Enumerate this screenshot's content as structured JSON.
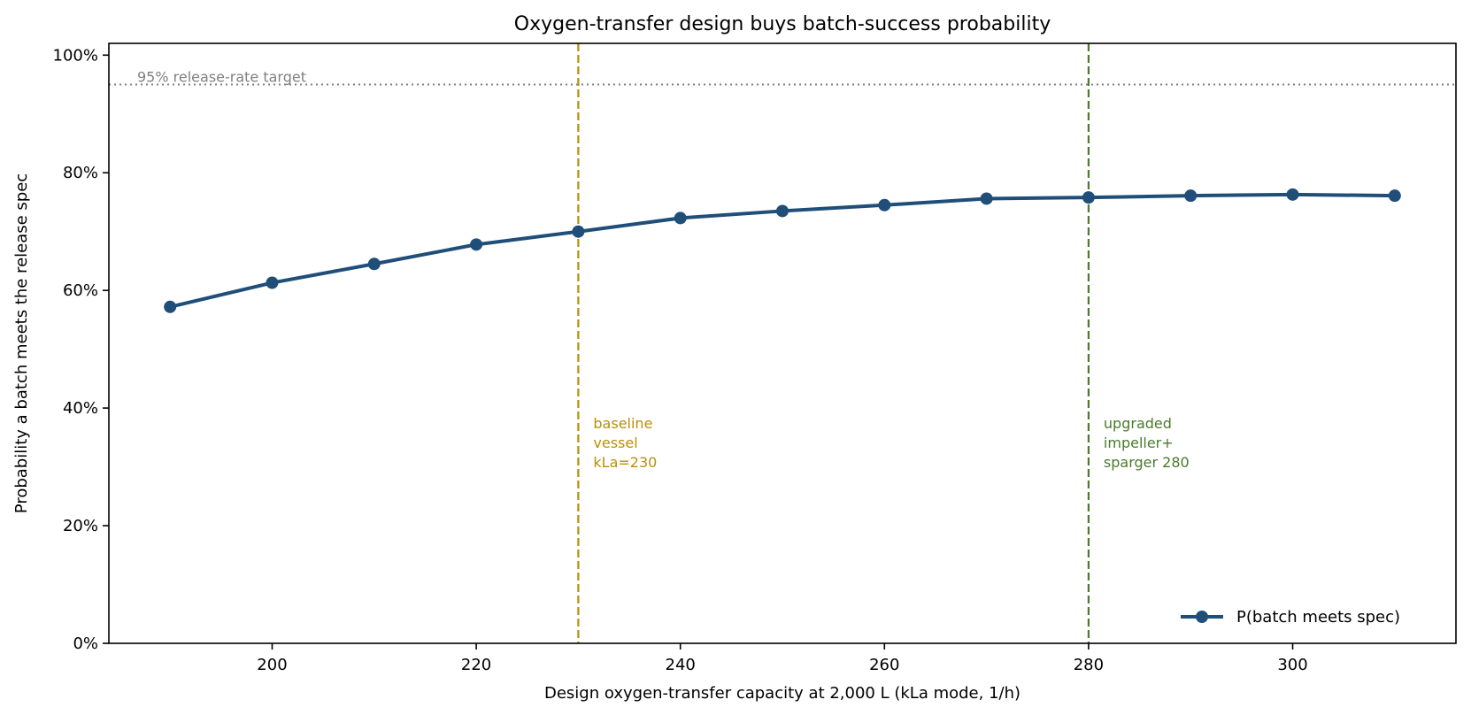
{
  "chart_data": {
    "type": "line",
    "title": "Oxygen-transfer design buys batch-success probability",
    "xlabel": "Design oxygen-transfer capacity at 2,000 L  (kLa mode, 1/h)",
    "ylabel": "Probability a batch meets the release spec",
    "xlim": [
      184,
      316
    ],
    "ylim": [
      0,
      102
    ],
    "x_ticks": [
      200,
      220,
      240,
      260,
      280,
      300
    ],
    "x_tick_labels": [
      "200",
      "220",
      "240",
      "260",
      "280",
      "300"
    ],
    "y_ticks": [
      0,
      20,
      40,
      60,
      80,
      100
    ],
    "y_tick_labels": [
      "0%",
      "20%",
      "40%",
      "60%",
      "80%",
      "100%"
    ],
    "grid": false,
    "legend_position": "lower-right",
    "series": [
      {
        "name": "P(batch meets spec)",
        "color": "#1f4e79",
        "x": [
          190,
          200,
          210,
          220,
          230,
          240,
          250,
          260,
          270,
          280,
          290,
          300,
          310
        ],
        "y": [
          57.2,
          61.3,
          64.5,
          67.8,
          70.0,
          72.3,
          73.5,
          74.5,
          75.6,
          75.8,
          76.1,
          76.3,
          76.1
        ]
      }
    ],
    "reference_lines": [
      {
        "type": "horizontal",
        "y": 95,
        "label": "95% release-rate target",
        "color": "#808080",
        "style": "dotted"
      },
      {
        "type": "vertical",
        "x": 230,
        "label_lines": [
          "baseline",
          "vessel",
          "kLa=230"
        ],
        "color": "#b8900a",
        "style": "dashed"
      },
      {
        "type": "vertical",
        "x": 280,
        "label_lines": [
          "upgraded",
          "impeller+",
          "sparger 280"
        ],
        "color": "#4a7a2a",
        "style": "dashed"
      }
    ]
  }
}
